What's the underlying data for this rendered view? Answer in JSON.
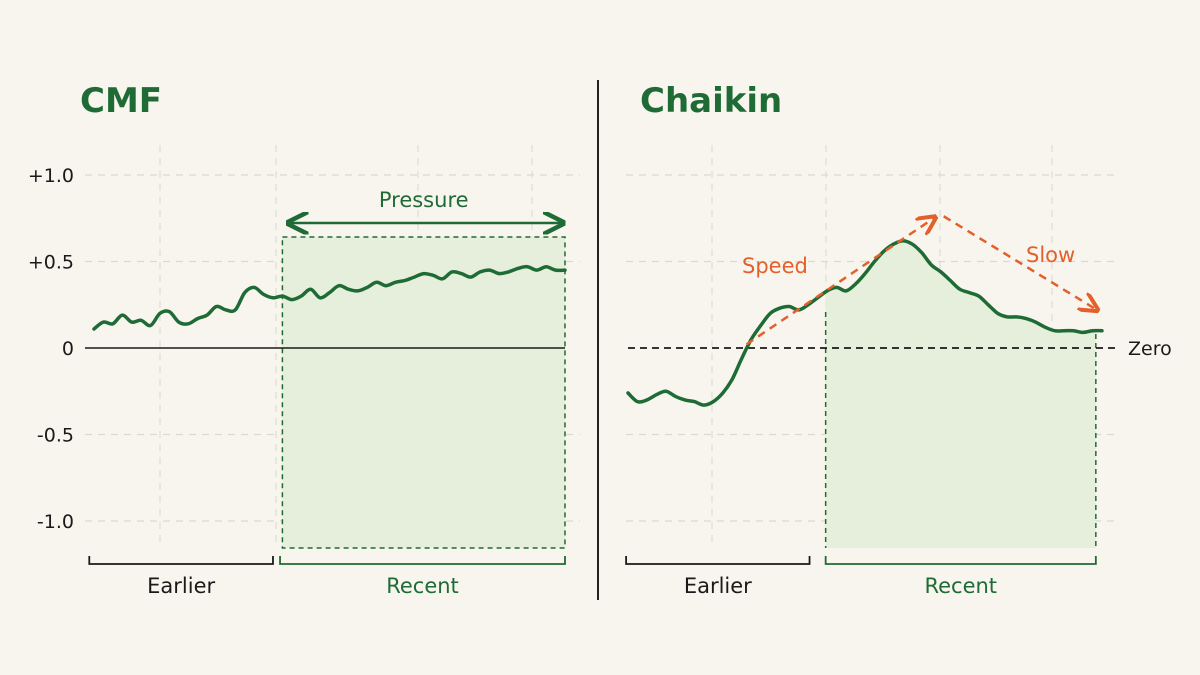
{
  "colors": {
    "background": "#f8f5ee",
    "line_green": "#1f6b35",
    "shade_green": "#e6eedc",
    "accent_orange": "#e4602a",
    "grid": "#d6d6d0",
    "ink": "#1a1a1a"
  },
  "chart_data": [
    {
      "type": "line",
      "title": "CMF",
      "ylim": [
        -1.2,
        1.2
      ],
      "yticks": [
        {
          "value": 1.0,
          "label": "+1.0"
        },
        {
          "value": 0.5,
          "label": "+0.5"
        },
        {
          "value": 0,
          "label": "0"
        },
        {
          "value": -0.5,
          "label": "-0.5"
        },
        {
          "value": -1.0,
          "label": "-1.0"
        }
      ],
      "xlim": [
        0,
        100
      ],
      "grid": true,
      "zero_line": "solid",
      "x": [
        0,
        2,
        4,
        6,
        8,
        10,
        12,
        14,
        16,
        18,
        20,
        22,
        24,
        26,
        28,
        30,
        32,
        34,
        36,
        38,
        40,
        42,
        44,
        46,
        48,
        50,
        52,
        54,
        56,
        58,
        60,
        62,
        64,
        66,
        68,
        70,
        72,
        74,
        76,
        78,
        80,
        82,
        84,
        86,
        88,
        90,
        92,
        94,
        96,
        98,
        100
      ],
      "values": [
        0.11,
        0.15,
        0.14,
        0.19,
        0.15,
        0.16,
        0.13,
        0.2,
        0.21,
        0.15,
        0.14,
        0.17,
        0.19,
        0.24,
        0.22,
        0.22,
        0.32,
        0.35,
        0.31,
        0.29,
        0.3,
        0.28,
        0.3,
        0.34,
        0.29,
        0.32,
        0.36,
        0.34,
        0.33,
        0.35,
        0.38,
        0.36,
        0.38,
        0.39,
        0.41,
        0.43,
        0.42,
        0.4,
        0.44,
        0.43,
        0.41,
        0.44,
        0.45,
        0.43,
        0.44,
        0.46,
        0.47,
        0.45,
        0.47,
        0.45,
        0.45
      ],
      "highlight": {
        "from_x": 40,
        "to_x": 100,
        "label": "Pressure"
      },
      "brackets": [
        {
          "label": "Earlier",
          "from_x": -1,
          "to_x": 38
        },
        {
          "label": "Recent",
          "from_x": 39.5,
          "to_x": 100
        }
      ]
    },
    {
      "type": "line",
      "title": "Chaikin",
      "ylim": [
        -1.2,
        1.2
      ],
      "xlim": [
        0,
        100
      ],
      "grid": true,
      "zero_line": "dashed",
      "zero_label": "Zero",
      "x": [
        0,
        2,
        4,
        6,
        8,
        10,
        12,
        14,
        16,
        18,
        20,
        22,
        24,
        26,
        28,
        30,
        32,
        34,
        36,
        38,
        40,
        42,
        44,
        46,
        48,
        50,
        52,
        54,
        56,
        58,
        60,
        62,
        64,
        66,
        68,
        70,
        72,
        74,
        76,
        78,
        80,
        82,
        84,
        86,
        88,
        90,
        92,
        94,
        96,
        98,
        100
      ],
      "values": [
        -0.26,
        -0.31,
        -0.3,
        -0.27,
        -0.25,
        -0.28,
        -0.3,
        -0.31,
        -0.33,
        -0.31,
        -0.26,
        -0.18,
        -0.06,
        0.05,
        0.13,
        0.2,
        0.23,
        0.24,
        0.22,
        0.25,
        0.29,
        0.33,
        0.35,
        0.33,
        0.37,
        0.43,
        0.5,
        0.56,
        0.6,
        0.62,
        0.6,
        0.55,
        0.48,
        0.44,
        0.39,
        0.34,
        0.32,
        0.3,
        0.25,
        0.2,
        0.18,
        0.18,
        0.17,
        0.15,
        0.12,
        0.1,
        0.1,
        0.1,
        0.09,
        0.1,
        0.1
      ],
      "highlight": {
        "from_x": 41.7,
        "to_x": 98.7
      },
      "annotations": [
        {
          "text": "Speed",
          "arrow_from": [
            25,
            0.05
          ],
          "arrow_to": [
            64.5,
            0.75
          ]
        },
        {
          "text": "Slow",
          "arrow_from": [
            66.6,
            0.75
          ],
          "arrow_to": [
            98.7,
            0.12
          ]
        }
      ],
      "brackets": [
        {
          "label": "Earlier",
          "from_x": -0.4,
          "to_x": 38.3
        },
        {
          "label": "Recent",
          "from_x": 41.7,
          "to_x": 98.7
        }
      ]
    }
  ]
}
